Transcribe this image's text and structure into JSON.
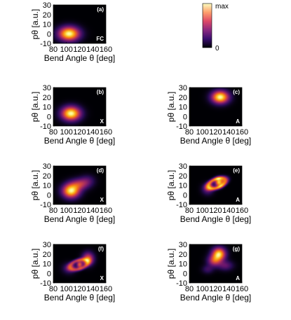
{
  "figure": {
    "axis": {
      "xlabel": "Bend Angle θ [deg]",
      "ylabel": "pθ [a.u.]",
      "xticks": [
        "80",
        "100",
        "120",
        "140",
        "160"
      ],
      "yticks": [
        "30",
        "20",
        "10",
        "0",
        "-10"
      ]
    },
    "colorbar": {
      "max_label": "max",
      "min_label": "0"
    },
    "panels": [
      {
        "tag": "(a)",
        "corner": "FC"
      },
      {
        "tag": "(b)",
        "corner": "X"
      },
      {
        "tag": "(c)",
        "corner": "A"
      },
      {
        "tag": "(d)",
        "corner": "X"
      },
      {
        "tag": "(e)",
        "corner": "A"
      },
      {
        "tag": "(f)",
        "corner": "X"
      },
      {
        "tag": "(g)",
        "corner": "A"
      }
    ]
  },
  "chart_data": {
    "type": "heatmap",
    "xlabel": "Bend Angle θ [deg]",
    "ylabel": "pθ [a.u.]",
    "xlim": [
      80,
      160
    ],
    "ylim": [
      -10,
      30
    ],
    "colorscale": [
      "#000004",
      "#3b0f70",
      "#8c2981",
      "#de4968",
      "#fe9f6d",
      "#fcfdbf"
    ],
    "colorbar_range": [
      "0",
      "max"
    ],
    "panels": [
      {
        "tag": "(a)",
        "state": "FC",
        "blobs": [
          {
            "x": 104,
            "y": 0,
            "sx": 11,
            "sy": 5,
            "amp": 1.0
          }
        ]
      },
      {
        "tag": "(b)",
        "state": "X",
        "blobs": [
          {
            "x": 107,
            "y": 3,
            "sx": 10,
            "sy": 5,
            "amp": 1.0
          }
        ]
      },
      {
        "tag": "(c)",
        "state": "A",
        "blobs": [
          {
            "x": 127,
            "y": 20,
            "sx": 9,
            "sy": 4.5,
            "amp": 1.0
          }
        ]
      },
      {
        "tag": "(d)",
        "state": "X",
        "blobs": [
          {
            "x": 107,
            "y": 4,
            "sx": 9,
            "sy": 5,
            "amp": 1.0
          },
          {
            "x": 120,
            "y": 11,
            "sx": 10,
            "sy": 4,
            "amp": 0.45
          },
          {
            "x": 132,
            "y": 15,
            "sx": 8,
            "sy": 4,
            "amp": 0.2
          }
        ]
      },
      {
        "tag": "(e)",
        "state": "A",
        "ring": {
          "x": 122,
          "y": 12,
          "a": 14,
          "b": 8,
          "width": 4,
          "amp": 0.75,
          "angle": 30
        },
        "blobs": [
          {
            "x": 125,
            "y": 13,
            "sx": 4,
            "sy": 3,
            "amp": 1.0
          },
          {
            "x": 108,
            "y": 6,
            "sx": 6,
            "sy": 4,
            "amp": 0.35
          }
        ]
      },
      {
        "tag": "(f)",
        "state": "X",
        "ring": {
          "x": 119,
          "y": 9,
          "a": 14,
          "b": 8,
          "width": 4,
          "amp": 0.7,
          "angle": 25
        },
        "blobs": [
          {
            "x": 133,
            "y": 15,
            "sx": 6,
            "sy": 4.5,
            "amp": 0.95
          },
          {
            "x": 120,
            "y": 9,
            "sx": 3,
            "sy": 2.5,
            "amp": 0.9
          },
          {
            "x": 104,
            "y": 5,
            "sx": 7,
            "sy": 4,
            "amp": 0.35
          }
        ]
      },
      {
        "tag": "(g)",
        "state": "A",
        "blobs": [
          {
            "x": 125,
            "y": 20,
            "sx": 7,
            "sy": 4.5,
            "amp": 1.0
          },
          {
            "x": 118,
            "y": 13,
            "sx": 7,
            "sy": 4,
            "amp": 0.55
          },
          {
            "x": 135,
            "y": 8,
            "sx": 8,
            "sy": 3.5,
            "amp": 0.3
          },
          {
            "x": 108,
            "y": 4,
            "sx": 6,
            "sy": 3,
            "amp": 0.2
          }
        ]
      }
    ]
  }
}
